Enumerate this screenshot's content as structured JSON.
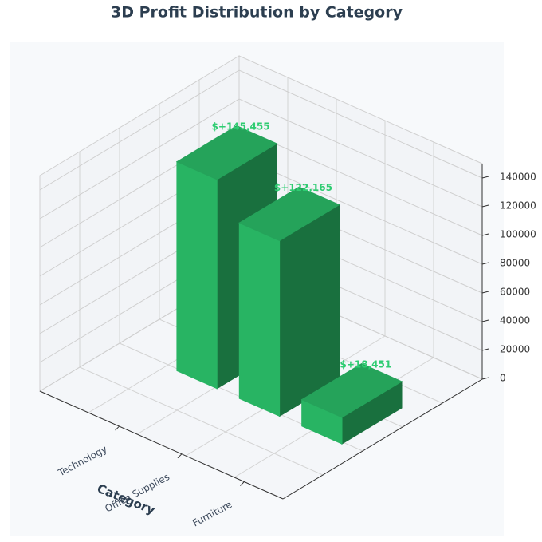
{
  "chart_data": {
    "type": "bar3d",
    "title": "3D Profit Distribution by Category",
    "categories": [
      "Technology",
      "Office Supplies",
      "Furniture"
    ],
    "values": [
      145455,
      122165,
      18451
    ],
    "value_labels": [
      "$+145,455",
      "$+122,165",
      "$+18,451"
    ],
    "color": "#2ecc71",
    "xlabel": "Category",
    "zlim": [
      0,
      150000
    ],
    "zticks": [
      0,
      20000,
      40000,
      60000,
      80000,
      100000,
      120000,
      140000
    ],
    "grid": true
  }
}
